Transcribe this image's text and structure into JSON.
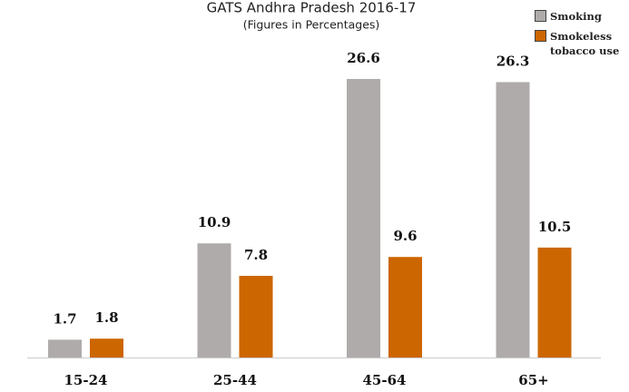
{
  "chart_data": {
    "type": "bar",
    "title": "GATS Andhra Pradesh 2016-17",
    "subtitle": "(Figures in Percentages)",
    "categories": [
      "15-24",
      "25-44",
      "45-64",
      "65+"
    ],
    "series": [
      {
        "name": "Smoking",
        "color": "#b0abab",
        "values": [
          1.7,
          10.9,
          26.6,
          26.3
        ]
      },
      {
        "name": "Smokeless tobacco use",
        "color": "#cc6600",
        "values": [
          1.8,
          7.8,
          9.6,
          10.5
        ]
      }
    ],
    "legend": "upper right"
  }
}
